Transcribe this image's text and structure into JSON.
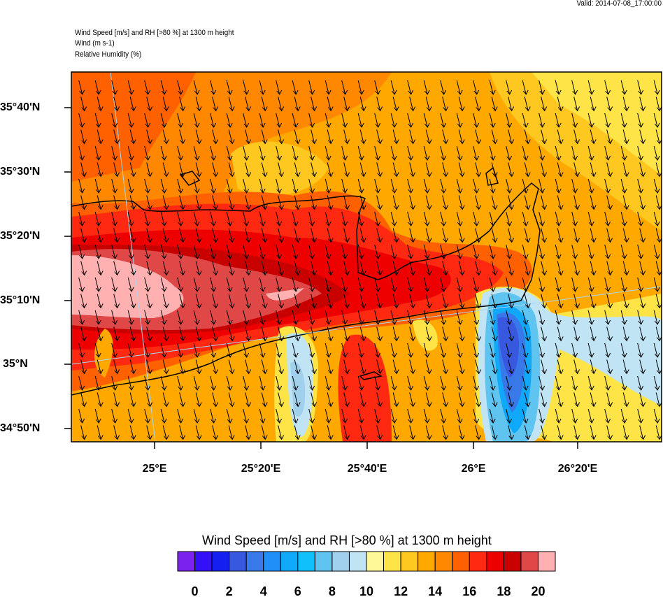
{
  "valid_time": "Valid: 2014-07-08_17:00:00",
  "header": {
    "line1": "Wind Speed [m/s] and RH [>80 %] at 1300 m height",
    "line2": "Wind   (m s-1)",
    "line3": "Relative Humidity   (%)"
  },
  "axes": {
    "lat_labels": [
      "35°40'N",
      "35°30'N",
      "35°20'N",
      "35°10'N",
      "35°N",
      "34°50'N"
    ],
    "lon_labels": [
      "25°E",
      "25°20'E",
      "25°40'E",
      "26°E",
      "26°20'E"
    ]
  },
  "colorbar": {
    "title": "Wind Speed [m/s] and RH [>80 %] at 1300 m height",
    "labels": [
      "0",
      "2",
      "4",
      "6",
      "8",
      "10",
      "12",
      "14",
      "16",
      "18",
      "20"
    ],
    "colors": [
      "#7b22ee",
      "#3310f8",
      "#1420f0",
      "#3858e0",
      "#3878e8",
      "#2090f8",
      "#10a8f8",
      "#10c0f8",
      "#60c4f0",
      "#a0d0ec",
      "#c0e4f4",
      "#fff898",
      "#ffe448",
      "#ffc820",
      "#ffa800",
      "#ff8800",
      "#ff6000",
      "#ff2810",
      "#ee0000",
      "#c80000",
      "#e04848",
      "#ffb0b0"
    ]
  },
  "chart_data": {
    "type": "heatmap",
    "title": "Wind Speed [m/s] and RH [>80 %] at 1300 m height",
    "units": "m/s",
    "levels": [
      0,
      1,
      2,
      3,
      4,
      5,
      6,
      7,
      8,
      9,
      10,
      11,
      12,
      13,
      14,
      15,
      16,
      17,
      18,
      19,
      20,
      21
    ],
    "lat_range": [
      "34°48'N",
      "35°46'N"
    ],
    "lon_range": [
      "24°44'E",
      "26°35'E"
    ],
    "wind_direction": "from north (southward arrows)"
  }
}
